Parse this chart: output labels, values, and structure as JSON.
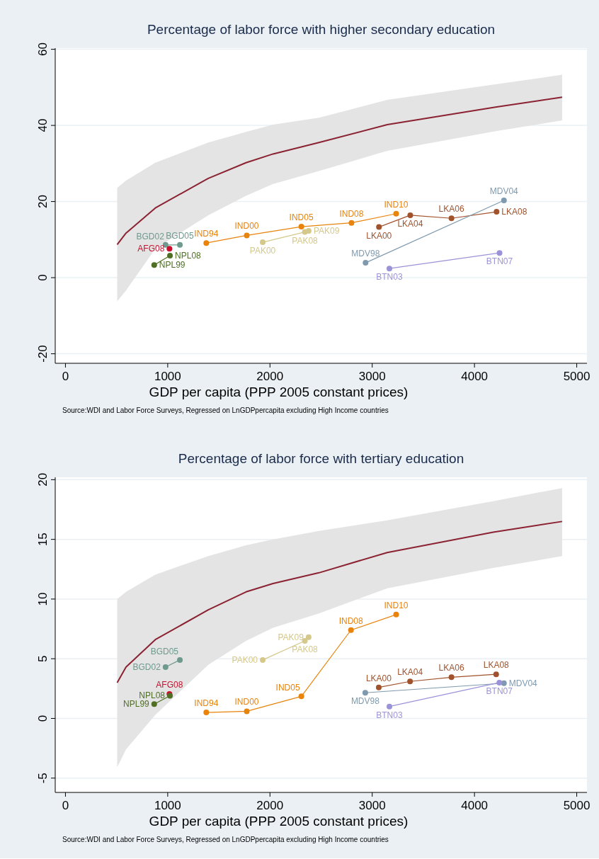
{
  "chart_data": [
    {
      "type": "line",
      "title": "Percentage of labor force with higher secondary education",
      "xlabel": "GDP per capita (PPP 2005 constant prices)",
      "annotations": [
        "Source:WDI and Labor Force Surveys,  Regressed on LnGDPpercapita excluding High Income countries"
      ],
      "xlim": [
        -100,
        5100
      ],
      "ylim": [
        -22.5,
        60.3
      ],
      "xticks": [
        0,
        1000,
        2000,
        3000,
        4000,
        5000
      ],
      "yticks": [
        {
          "value": -20,
          "label": "-20"
        },
        0,
        20,
        40,
        60
      ],
      "grid": "y",
      "marker": "circle",
      "series": [
        {
          "color": "#8b2232",
          "marker": "none",
          "x": [
            506,
            592,
            879,
            1397,
            1766,
            2030,
            2479,
            3147,
            4206,
            4857
          ],
          "values": [
            8.7,
            11.7,
            18.3,
            26.1,
            30.2,
            32.5,
            35.5,
            40.2,
            44.8,
            47.4
          ],
          "lower": [
            -6.2,
            -3.4,
            7.6,
            16.4,
            21.5,
            24.6,
            28,
            33.3,
            38.5,
            41.3
          ],
          "upper": [
            23.6,
            25.5,
            30.2,
            35.5,
            38.3,
            40.2,
            42,
            46.7,
            50.8,
            53.3
          ]
        },
        {
          "color": "#6e9a8e",
          "x": [
            979,
            1119
          ],
          "values": [
            8.6,
            8.6
          ],
          "value_labels": [
            "BGD02",
            "BGD05"
          ]
        },
        {
          "color": "#c8102e",
          "x": [
            1017
          ],
          "values": [
            7.6
          ],
          "value_labels": [
            "AFG08"
          ]
        },
        {
          "color": "#4e6f24",
          "x": [
            868,
            1022
          ],
          "values": [
            3.3,
            5.8
          ],
          "value_labels": [
            "NPL99",
            "NPL08"
          ]
        },
        {
          "color": "#e8830c",
          "x": [
            1377,
            1773,
            2307,
            2797,
            3234
          ],
          "values": [
            9.1,
            11.1,
            13.4,
            14.4,
            16.8
          ],
          "value_labels": [
            "IND94",
            "IND00",
            "IND05",
            "IND08",
            "IND10"
          ]
        },
        {
          "color": "#d4c88a",
          "x": [
            1929,
            2341,
            2378
          ],
          "values": [
            9.3,
            12.0,
            12.3
          ],
          "value_labels": [
            "PAK00",
            "PAK08",
            "PAK09"
          ]
        },
        {
          "color": "#a0522d",
          "x": [
            3066,
            3372,
            3775,
            4216
          ],
          "values": [
            13.3,
            16.4,
            15.6,
            17.3
          ],
          "value_labels": [
            "LKA00",
            "LKA04",
            "LKA06",
            "LKA08"
          ]
        },
        {
          "color": "#7f9aae",
          "x": [
            2935,
            4288
          ],
          "values": [
            3.9,
            20.3
          ],
          "value_labels": [
            "MDV98",
            "MDV04"
          ]
        },
        {
          "color": "#9b93d8",
          "x": [
            3168,
            4245
          ],
          "values": [
            2.4,
            6.5
          ],
          "value_labels": [
            "BTN03",
            "BTN07"
          ]
        }
      ]
    },
    {
      "type": "line",
      "title": "Percentage of labor force with tertiary education",
      "xlabel": "GDP per capita (PPP 2005 constant prices)",
      "annotations": [
        "Source:WDI and Labor Force Surveys,  Regressed on LnGDPpercapita excluding High Income countries"
      ],
      "xlim": [
        -100,
        5100
      ],
      "ylim": [
        -6.2,
        20.2
      ],
      "xticks": [
        0,
        1000,
        2000,
        3000,
        4000,
        5000
      ],
      "yticks": [
        {
          "value": -5,
          "label": "-5"
        },
        0,
        5,
        10,
        15,
        20
      ],
      "grid": "y",
      "marker": "circle",
      "series": [
        {
          "color": "#8b2232",
          "marker": "none",
          "x": [
            506,
            592,
            879,
            1397,
            1766,
            2030,
            2479,
            3147,
            4183,
            4857
          ],
          "values": [
            3.0,
            4.3,
            6.6,
            9.1,
            10.6,
            11.3,
            12.2,
            13.9,
            15.6,
            16.5
          ],
          "lower": [
            -4.1,
            -2.6,
            0.3,
            4.5,
            6.5,
            7.6,
            8.8,
            10.9,
            12.6,
            13.6
          ],
          "upper": [
            10.0,
            10.6,
            12.05,
            13.6,
            14.5,
            15.0,
            15.7,
            16.6,
            18.2,
            19.3
          ]
        },
        {
          "color": "#6e9a8e",
          "x": [
            979,
            1119
          ],
          "values": [
            4.3,
            4.9
          ],
          "value_labels": [
            "BGD02",
            "BGD05"
          ]
        },
        {
          "color": "#c8102e",
          "x": [
            1017
          ],
          "values": [
            2.05
          ],
          "value_labels": [
            "AFG08"
          ]
        },
        {
          "color": "#4e6f24",
          "x": [
            868,
            1022
          ],
          "values": [
            1.2,
            1.9
          ],
          "value_labels": [
            "NPL99",
            "NPL08"
          ]
        },
        {
          "color": "#e8830c",
          "x": [
            1377,
            1773,
            2307,
            2792,
            3234
          ],
          "values": [
            0.5,
            0.6,
            1.85,
            7.4,
            8.7
          ],
          "value_labels": [
            "IND94",
            "IND00",
            "IND05",
            "IND08",
            "IND10"
          ]
        },
        {
          "color": "#d4c88a",
          "x": [
            1929,
            2341,
            2378
          ],
          "values": [
            4.9,
            6.5,
            6.8
          ],
          "value_labels": [
            "PAK00",
            "PAK08",
            "PAK09"
          ]
        },
        {
          "color": "#a0522d",
          "x": [
            3064,
            3370,
            3775,
            4212
          ],
          "values": [
            2.6,
            3.1,
            3.45,
            3.7
          ],
          "value_labels": [
            "LKA00",
            "LKA04",
            "LKA06",
            "LKA08"
          ]
        },
        {
          "color": "#7f9aae",
          "x": [
            2932,
            4288
          ],
          "values": [
            2.15,
            2.95
          ],
          "value_labels": [
            "MDV98",
            "MDV04"
          ]
        },
        {
          "color": "#9b93d8",
          "x": [
            3168,
            4243
          ],
          "values": [
            1.0,
            3.0
          ],
          "value_labels": [
            "BTN03",
            "BTN07"
          ]
        }
      ]
    }
  ]
}
